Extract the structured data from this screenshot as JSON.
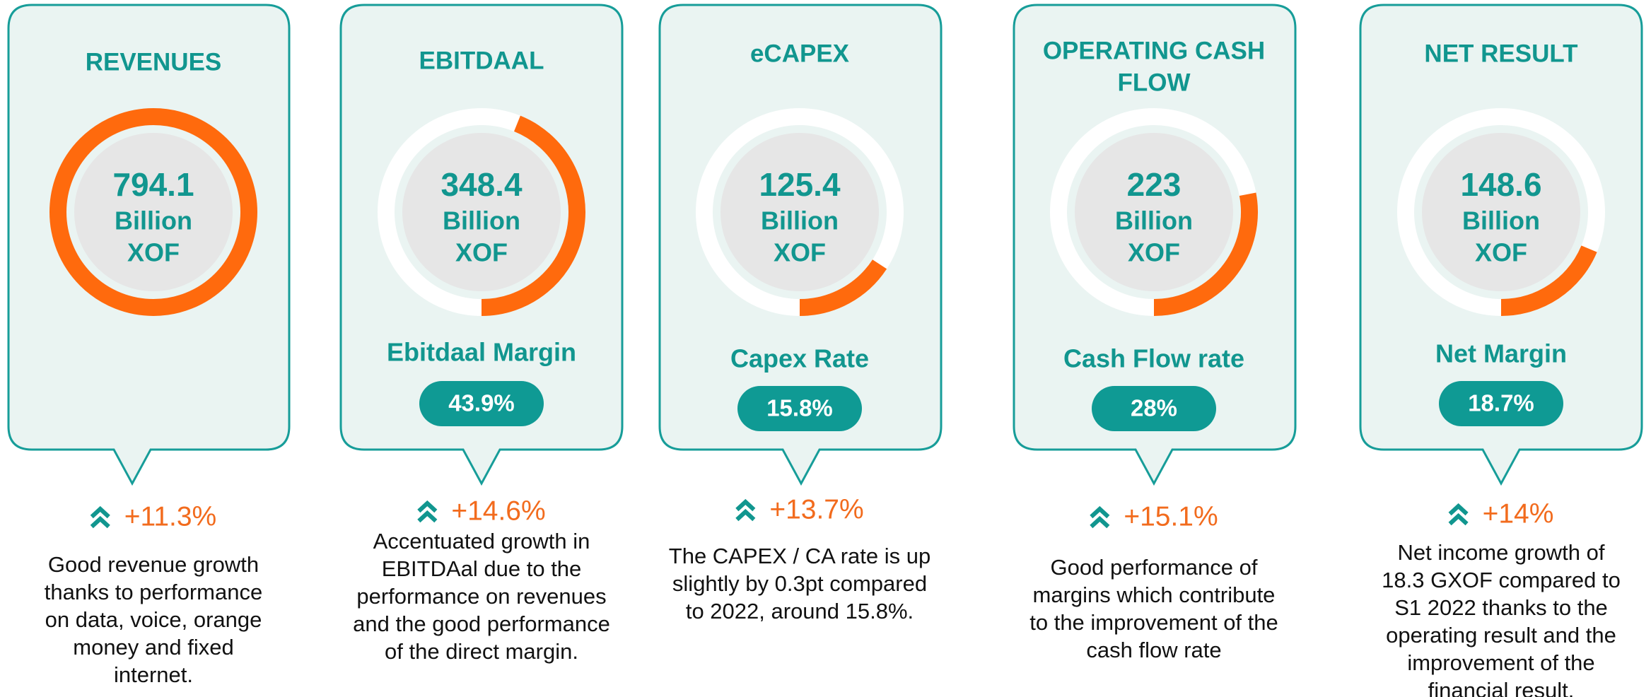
{
  "cards": [
    {
      "title": [
        "REVENUES"
      ],
      "value": "794.1",
      "unit": [
        "Billion",
        "XOF"
      ],
      "growth": "+11.3%",
      "description": [
        "Good revenue growth",
        "thanks to performance",
        "on data, voice, orange",
        "money and fixed",
        "internet."
      ]
    },
    {
      "title": [
        "EBITDAAL"
      ],
      "value": "348.4",
      "unit": [
        "Billion",
        "XOF"
      ],
      "rate_name": "Ebitdaal Margin",
      "rate": {
        "value": 43.9,
        "label": "43.9%"
      },
      "growth": "+14.6%",
      "description": [
        "Accentuated growth in",
        "EBITDAal due to the",
        "performance on revenues",
        "and the good performance",
        "of the direct margin."
      ]
    },
    {
      "title": [
        "eCAPEX"
      ],
      "value": "125.4",
      "unit": [
        "Billion",
        "XOF"
      ],
      "rate_name": "Capex Rate",
      "rate": {
        "value": 15.8,
        "label": "15.8%"
      },
      "growth": "+13.7%",
      "description": [
        "The CAPEX / CA rate is up",
        "slightly by 0.3pt compared",
        "to 2022, around 15.8%."
      ]
    },
    {
      "title": [
        "OPERATING CASH",
        "FLOW"
      ],
      "value": "223",
      "unit": [
        "Billion",
        "XOF"
      ],
      "rate_name": "Cash Flow rate",
      "rate": {
        "value": 28,
        "label": "28%"
      },
      "growth": "+15.1%",
      "description": [
        "Good performance of",
        "margins which contribute",
        "to the improvement of the",
        "cash flow rate"
      ]
    },
    {
      "title": [
        "NET RESULT"
      ],
      "value": "148.6",
      "unit": [
        "Billion",
        "XOF"
      ],
      "rate_name": "Net Margin",
      "rate": {
        "value": 18.7,
        "label": "18.7%"
      },
      "growth": "+14%",
      "description": [
        "Net income growth of",
        "18.3 GXOF compared to",
        "S1 2022 thanks to the",
        "operating result and the",
        "improvement of the",
        "financial result."
      ]
    }
  ]
}
